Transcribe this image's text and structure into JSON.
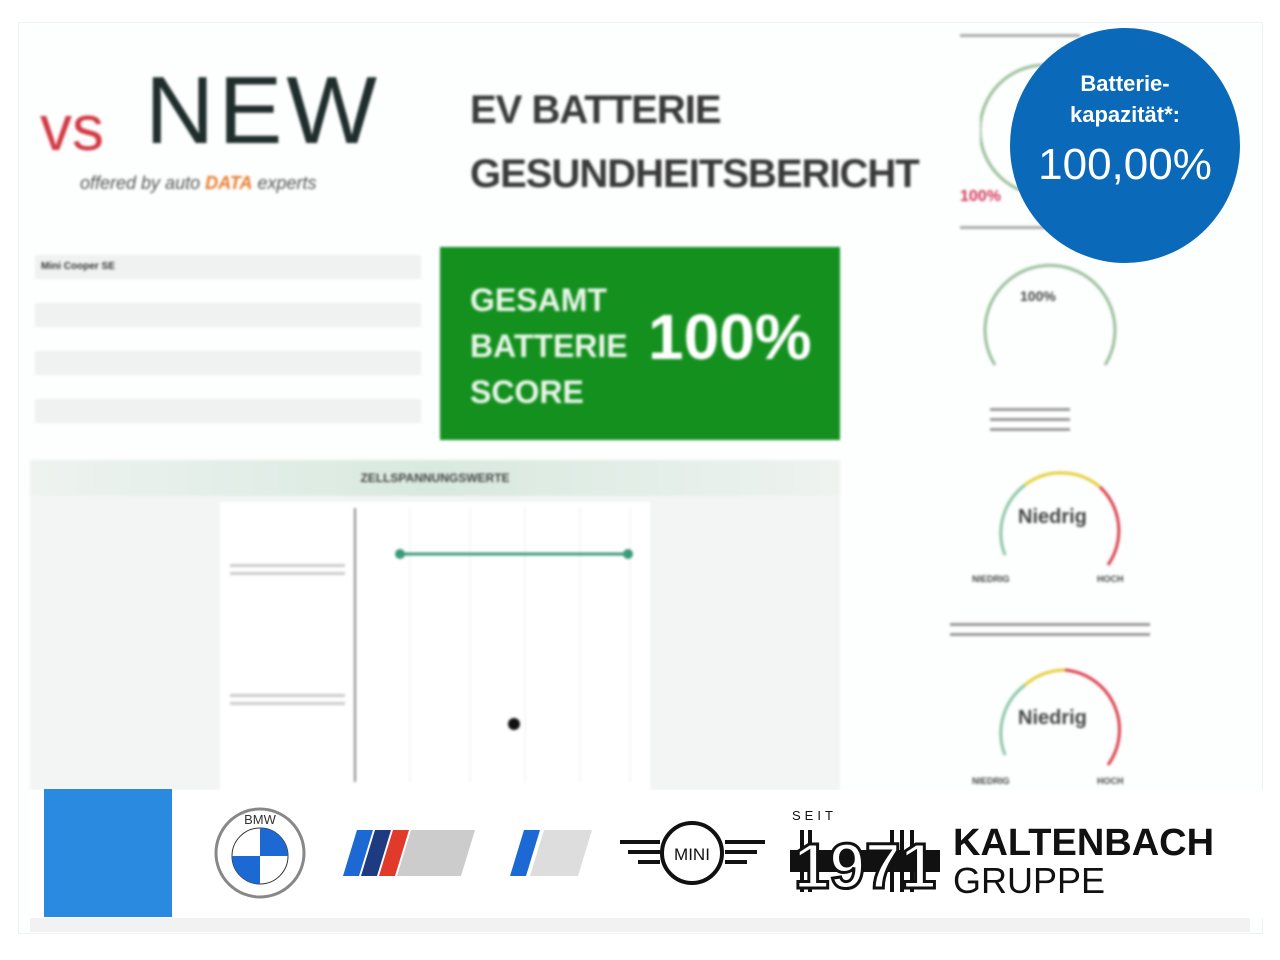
{
  "logo": {
    "prefix": "vs",
    "name": "NEW",
    "tagline_pre": "offered by auto",
    "tagline_brand": "DATA",
    "tagline_post": "experts"
  },
  "report": {
    "title_line1": "EV BATTERIE",
    "title_line2": "GESUNDHEITSBERICHT"
  },
  "vehicle": {
    "rows": [
      "Mini Cooper SE",
      "",
      "",
      "",
      "",
      "",
      ""
    ]
  },
  "score": {
    "label_lines": [
      "GESAMT",
      "BATTERIE",
      "SCORE"
    ],
    "value": "100%",
    "color": "#14901f"
  },
  "cell_chart": {
    "header": "ZELLSPANNUNGSWERTE"
  },
  "side": {
    "capacity_value": "100%",
    "health_value": "100%",
    "risk1": {
      "value": "Niedrig",
      "low": "NIEDRIG",
      "high": "HOCH"
    },
    "risk2": {
      "value": "Niedrig",
      "low": "NIEDRIG",
      "high": "HOCH"
    }
  },
  "badge": {
    "title_line1": "Batterie-",
    "title_line2": "kapazität*:",
    "value": "100,00%",
    "color": "#0a69b8"
  },
  "brands": {
    "bmw": "BMW",
    "mini": "MINI",
    "seit": "SEIT",
    "year": "1971",
    "dealer_line1": "KALTENBACH",
    "dealer_line2": "GRUPPE"
  }
}
